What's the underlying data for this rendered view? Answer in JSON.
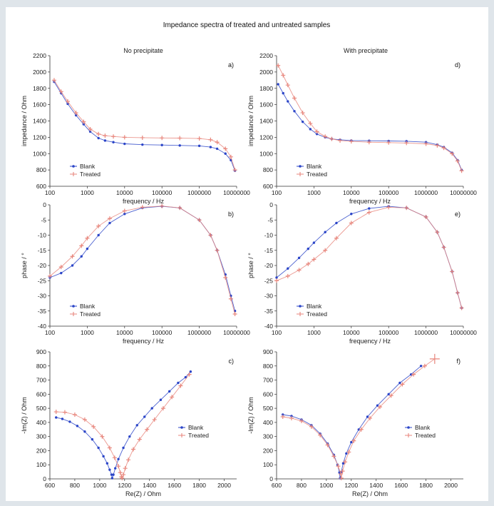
{
  "title": "Impedance spectra of treated and untreated samples",
  "column_titles": [
    "No precipitate",
    "With precipitate"
  ],
  "colors": {
    "blank": "#2b45c8",
    "treated": "#e8867c"
  },
  "chart_data": [
    {
      "id": "a",
      "panel_label": "a)",
      "type": "line",
      "xscale": "log",
      "xlabel": "frequency / Hz",
      "ylabel": "impedance / Ohm",
      "xlim": [
        100,
        10000000
      ],
      "ylim": [
        600,
        2200
      ],
      "xticks": [
        100,
        1000,
        10000,
        100000,
        1000000,
        10000000
      ],
      "xtick_labels": [
        "100",
        "1000",
        "10000",
        "100000",
        "1000000",
        "10000000"
      ],
      "yticks": [
        600,
        800,
        1000,
        1200,
        1400,
        1600,
        1800,
        2000,
        2200
      ],
      "ytick_labels": [
        "600",
        "800",
        "1000",
        "1200",
        "1400",
        "1600",
        "1800",
        "2000",
        "2200"
      ],
      "legend": "lower-left",
      "grid": false,
      "series": [
        {
          "name": "Blank",
          "key": "blank",
          "x": [
            130,
            200,
            300,
            500,
            800,
            1200,
            2000,
            3000,
            5000,
            10000,
            30000,
            100000,
            300000,
            1000000,
            2000000,
            3000000,
            5000000,
            7000000,
            9000000
          ],
          "y": [
            1880,
            1740,
            1610,
            1470,
            1360,
            1270,
            1190,
            1160,
            1140,
            1120,
            1110,
            1105,
            1100,
            1095,
            1080,
            1060,
            1000,
            920,
            790
          ]
        },
        {
          "name": "Treated",
          "key": "treated",
          "x": [
            130,
            200,
            300,
            500,
            800,
            1200,
            2000,
            3000,
            5000,
            10000,
            30000,
            100000,
            300000,
            1000000,
            2000000,
            3000000,
            5000000,
            7000000,
            9000000
          ],
          "y": [
            1900,
            1760,
            1640,
            1500,
            1390,
            1300,
            1240,
            1220,
            1210,
            1200,
            1195,
            1192,
            1190,
            1185,
            1170,
            1140,
            1060,
            960,
            800
          ]
        }
      ]
    },
    {
      "id": "d",
      "panel_label": "d)",
      "type": "line",
      "xscale": "log",
      "xlabel": "frequency / Hz",
      "ylabel": "impedance / Ohm",
      "xlim": [
        100,
        10000000
      ],
      "ylim": [
        600,
        2200
      ],
      "xticks": [
        100,
        1000,
        10000,
        100000,
        1000000,
        10000000
      ],
      "xtick_labels": [
        "100",
        "1000",
        "10000",
        "100000",
        "1000000",
        "10000000"
      ],
      "yticks": [
        600,
        800,
        1000,
        1200,
        1400,
        1600,
        1800,
        2000,
        2200
      ],
      "ytick_labels": [
        "600",
        "800",
        "1000",
        "1200",
        "1400",
        "1600",
        "1800",
        "2000",
        "2200"
      ],
      "legend": "lower-left",
      "grid": false,
      "series": [
        {
          "name": "Blank",
          "key": "blank",
          "x": [
            110,
            150,
            200,
            300,
            500,
            800,
            1200,
            2000,
            3000,
            5000,
            10000,
            30000,
            100000,
            300000,
            1000000,
            2000000,
            3000000,
            5000000,
            7000000,
            9000000
          ],
          "y": [
            1850,
            1740,
            1640,
            1520,
            1390,
            1300,
            1240,
            1200,
            1180,
            1170,
            1160,
            1158,
            1155,
            1152,
            1140,
            1110,
            1080,
            1010,
            920,
            800
          ]
        },
        {
          "name": "Treated",
          "key": "treated",
          "x": [
            110,
            150,
            200,
            300,
            500,
            800,
            1200,
            2000,
            3000,
            5000,
            10000,
            30000,
            100000,
            300000,
            1000000,
            2000000,
            3000000,
            5000000,
            7000000,
            9000000
          ],
          "y": [
            2080,
            1960,
            1840,
            1680,
            1500,
            1370,
            1270,
            1210,
            1180,
            1160,
            1150,
            1140,
            1135,
            1130,
            1120,
            1100,
            1070,
            1000,
            910,
            790
          ]
        }
      ]
    },
    {
      "id": "b",
      "panel_label": "b)",
      "type": "line",
      "xscale": "log",
      "xlabel": "frequency / Hz",
      "ylabel": "phase /   °",
      "xlim": [
        100,
        10000000
      ],
      "ylim": [
        -40,
        0
      ],
      "xticks": [
        100,
        1000,
        10000,
        100000,
        1000000,
        10000000
      ],
      "xtick_labels": [
        "100",
        "1000",
        "10000",
        "100000",
        "1000000",
        "10000000"
      ],
      "yticks": [
        -40,
        -35,
        -30,
        -25,
        -20,
        -15,
        -10,
        -5,
        0
      ],
      "ytick_labels": [
        "-40",
        "-35",
        "-30",
        "-25",
        "-20",
        "-15",
        "-10",
        "-5",
        "0"
      ],
      "legend": "lower-left",
      "grid": false,
      "series": [
        {
          "name": "Blank",
          "key": "blank",
          "x": [
            100,
            200,
            400,
            700,
            1000,
            2000,
            4000,
            10000,
            30000,
            100000,
            300000,
            1000000,
            2000000,
            3000000,
            5000000,
            7000000,
            9000000
          ],
          "y": [
            -24,
            -22.5,
            -20,
            -17,
            -14.5,
            -10,
            -6,
            -3,
            -1,
            -0.5,
            -1,
            -5,
            -10,
            -15,
            -23,
            -30,
            -35
          ]
        },
        {
          "name": "Treated",
          "key": "treated",
          "x": [
            100,
            200,
            400,
            700,
            1000,
            2000,
            4000,
            10000,
            30000,
            100000,
            300000,
            1000000,
            2000000,
            3000000,
            5000000,
            7000000,
            9000000
          ],
          "y": [
            -23.5,
            -20.5,
            -17,
            -13.5,
            -11,
            -7,
            -4.5,
            -2,
            -0.8,
            -0.4,
            -1,
            -5,
            -10,
            -15,
            -24,
            -31,
            -36
          ]
        }
      ]
    },
    {
      "id": "e",
      "panel_label": "e)",
      "type": "line",
      "xscale": "log",
      "xlabel": "frequency / Hz",
      "ylabel": "phase /   °",
      "xlim": [
        100,
        10000000
      ],
      "ylim": [
        -40,
        0
      ],
      "xticks": [
        100,
        1000,
        10000,
        100000,
        1000000,
        10000000
      ],
      "xtick_labels": [
        "100",
        "1000",
        "10000",
        "100000",
        "1000000",
        "10000000"
      ],
      "yticks": [
        -40,
        -35,
        -30,
        -25,
        -20,
        -15,
        -10,
        -5,
        0
      ],
      "ytick_labels": [
        "-40",
        "-35",
        "-30",
        "-25",
        "-20",
        "-15",
        "-10",
        "-5",
        "0"
      ],
      "legend": "lower-left",
      "grid": false,
      "series": [
        {
          "name": "Blank",
          "key": "blank",
          "x": [
            100,
            200,
            400,
            700,
            1000,
            2000,
            4000,
            10000,
            30000,
            100000,
            300000,
            1000000,
            2000000,
            3000000,
            5000000,
            7000000,
            9000000
          ],
          "y": [
            -24,
            -21,
            -17.5,
            -14.5,
            -12.5,
            -9,
            -6,
            -3,
            -1.2,
            -0.5,
            -1,
            -4,
            -9,
            -14,
            -22,
            -29,
            -34
          ]
        },
        {
          "name": "Treated",
          "key": "treated",
          "x": [
            100,
            200,
            400,
            700,
            1000,
            2000,
            4000,
            10000,
            30000,
            100000,
            300000,
            1000000,
            2000000,
            3000000,
            5000000,
            7000000,
            9000000
          ],
          "y": [
            -25,
            -23.5,
            -21.5,
            -19.5,
            -18,
            -15,
            -11,
            -6,
            -2.5,
            -0.8,
            -1,
            -4,
            -9,
            -14,
            -22,
            -29,
            -34
          ]
        }
      ]
    },
    {
      "id": "c",
      "panel_label": "c)",
      "type": "scatter",
      "xscale": "linear",
      "xlabel": "Re(Z) / Ohm",
      "ylabel": "-Im(Z) / Ohm",
      "xlim": [
        600,
        2100
      ],
      "ylim": [
        0,
        900
      ],
      "xticks": [
        600,
        800,
        1000,
        1200,
        1400,
        1600,
        1800,
        2000
      ],
      "xtick_labels": [
        "600",
        "800",
        "1000",
        "1200",
        "1400",
        "1600",
        "1800",
        "2000"
      ],
      "yticks": [
        0,
        100,
        200,
        300,
        400,
        500,
        600,
        700,
        800,
        900
      ],
      "ytick_labels": [
        "0",
        "100",
        "200",
        "300",
        "400",
        "500",
        "600",
        "700",
        "800",
        "900"
      ],
      "legend": "right",
      "grid": false,
      "series": [
        {
          "name": "Blank",
          "key": "blank",
          "x": [
            650,
            700,
            760,
            820,
            880,
            940,
            990,
            1030,
            1060,
            1080,
            1095,
            1100,
            1110,
            1125,
            1150,
            1190,
            1240,
            1300,
            1360,
            1420,
            1490,
            1560,
            1630,
            1690,
            1730
          ],
          "y": [
            435,
            425,
            405,
            375,
            335,
            280,
            220,
            160,
            110,
            65,
            30,
            5,
            30,
            75,
            140,
            220,
            300,
            380,
            440,
            500,
            560,
            620,
            680,
            720,
            760
          ]
        },
        {
          "name": "Treated",
          "key": "treated",
          "x": [
            650,
            720,
            800,
            880,
            950,
            1020,
            1080,
            1120,
            1150,
            1165,
            1175,
            1180,
            1190,
            1205,
            1230,
            1270,
            1320,
            1380,
            1440,
            1510,
            1580,
            1650,
            1720
          ],
          "y": [
            475,
            472,
            455,
            420,
            370,
            300,
            220,
            150,
            90,
            45,
            15,
            5,
            30,
            75,
            135,
            210,
            280,
            350,
            420,
            500,
            580,
            660,
            740
          ]
        }
      ]
    },
    {
      "id": "f",
      "panel_label": "f)",
      "type": "scatter",
      "xscale": "linear",
      "xlabel": "Re(Z) / Ohm",
      "ylabel": "-Im(Z) / Ohm",
      "xlim": [
        600,
        2100
      ],
      "ylim": [
        0,
        900
      ],
      "xticks": [
        600,
        800,
        1000,
        1200,
        1400,
        1600,
        1800,
        2000
      ],
      "xtick_labels": [
        "600",
        "800",
        "1000",
        "1200",
        "1400",
        "1600",
        "1800",
        "2000"
      ],
      "yticks": [
        0,
        100,
        200,
        300,
        400,
        500,
        600,
        700,
        800,
        900
      ],
      "ytick_labels": [
        "0",
        "100",
        "200",
        "300",
        "400",
        "500",
        "600",
        "700",
        "800",
        "900"
      ],
      "legend": "right",
      "grid": false,
      "series": [
        {
          "name": "Blank",
          "key": "blank",
          "x": [
            650,
            720,
            800,
            880,
            950,
            1010,
            1060,
            1090,
            1105,
            1110,
            1120,
            1135,
            1160,
            1200,
            1260,
            1330,
            1410,
            1500,
            1590,
            1680,
            1760
          ],
          "y": [
            455,
            445,
            420,
            380,
            320,
            250,
            170,
            100,
            45,
            5,
            50,
            110,
            180,
            260,
            350,
            440,
            520,
            600,
            680,
            740,
            800
          ]
        },
        {
          "name": "Treated",
          "key": "treated",
          "x": [
            650,
            720,
            800,
            880,
            950,
            1010,
            1060,
            1095,
            1115,
            1120,
            1130,
            1150,
            1180,
            1220,
            1280,
            1350,
            1430,
            1520,
            1610,
            1700,
            1790,
            1870
          ],
          "y": [
            440,
            430,
            410,
            370,
            310,
            240,
            160,
            90,
            35,
            5,
            55,
            120,
            190,
            270,
            350,
            430,
            510,
            590,
            670,
            740,
            800,
            850
          ]
        }
      ]
    }
  ]
}
